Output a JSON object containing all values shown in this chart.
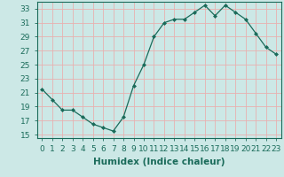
{
  "x": [
    0,
    1,
    2,
    3,
    4,
    5,
    6,
    7,
    8,
    9,
    10,
    11,
    12,
    13,
    14,
    15,
    16,
    17,
    18,
    19,
    20,
    21,
    22,
    23
  ],
  "y": [
    21.5,
    20.0,
    18.5,
    18.5,
    17.5,
    16.5,
    16.0,
    15.5,
    17.5,
    22.0,
    25.0,
    29.0,
    31.0,
    31.5,
    31.5,
    32.5,
    33.5,
    32.0,
    33.5,
    32.5,
    31.5,
    29.5,
    27.5,
    26.5
  ],
  "line_color": "#1a6b5a",
  "marker": "D",
  "marker_size": 2.0,
  "bg_color": "#cce8e6",
  "grid_color": "#e8b0b0",
  "spine_color": "#1a6b5a",
  "tick_color": "#1a6b5a",
  "xlabel": "Humidex (Indice chaleur)",
  "xlim": [
    -0.5,
    23.5
  ],
  "ylim": [
    14.5,
    34.0
  ],
  "yticks": [
    15,
    17,
    19,
    21,
    23,
    25,
    27,
    29,
    31,
    33
  ],
  "xticks": [
    0,
    1,
    2,
    3,
    4,
    5,
    6,
    7,
    8,
    9,
    10,
    11,
    12,
    13,
    14,
    15,
    16,
    17,
    18,
    19,
    20,
    21,
    22,
    23
  ],
  "tick_fontsize": 6.5,
  "xlabel_fontsize": 7.5
}
